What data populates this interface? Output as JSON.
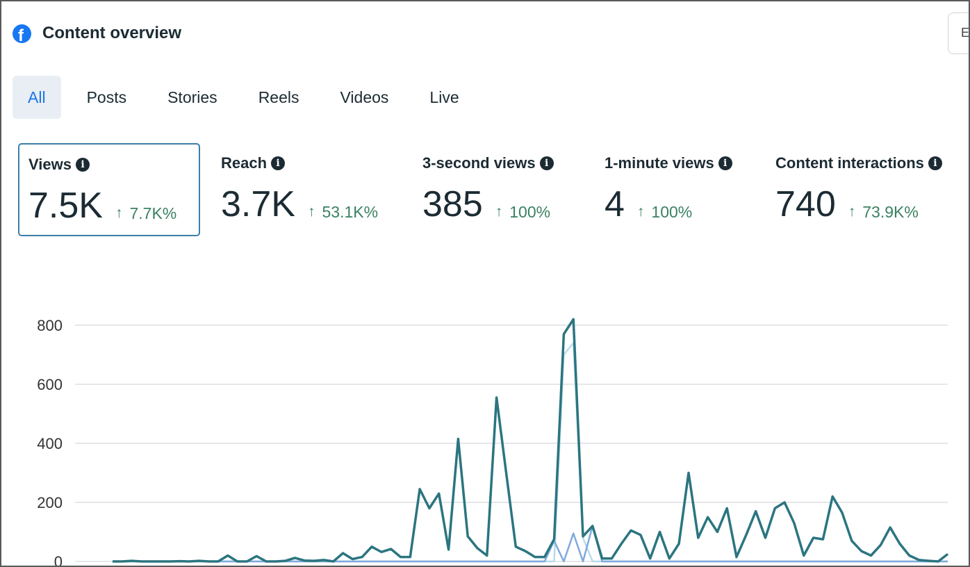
{
  "header": {
    "title": "Content overview",
    "logo_icon": "facebook-icon",
    "corner_button_label": "E"
  },
  "tabs": [
    {
      "label": "All",
      "active": true
    },
    {
      "label": "Posts",
      "active": false
    },
    {
      "label": "Stories",
      "active": false
    },
    {
      "label": "Reels",
      "active": false
    },
    {
      "label": "Videos",
      "active": false
    },
    {
      "label": "Live",
      "active": false
    }
  ],
  "metrics": [
    {
      "label": "Views",
      "value": "7.5K",
      "change": "7.7K%",
      "selected": true
    },
    {
      "label": "Reach",
      "value": "3.7K",
      "change": "53.1K%",
      "selected": false
    },
    {
      "label": "3-second views",
      "value": "385",
      "change": "100%",
      "selected": false
    },
    {
      "label": "1-minute views",
      "value": "4",
      "change": "100%",
      "selected": false
    },
    {
      "label": "Content interactions",
      "value": "740",
      "change": "73.9K%",
      "selected": false
    }
  ],
  "colors": {
    "accent": "#1b74e4",
    "positive": "#3b8162",
    "series_main": "#2b7580",
    "series_secondary": "#7fa9dc",
    "series_tertiary": "#b9dcea"
  },
  "chart_data": {
    "type": "line",
    "ylim": [
      0,
      800
    ],
    "yticks": [
      0,
      200,
      400,
      600,
      800
    ],
    "grid": true,
    "series": [
      {
        "color": "#2b7580",
        "values": [
          0,
          0,
          2,
          0,
          0,
          0,
          0,
          1,
          0,
          2,
          0,
          0,
          20,
          0,
          0,
          18,
          0,
          0,
          2,
          12,
          3,
          2,
          5,
          0,
          28,
          8,
          15,
          50,
          32,
          42,
          15,
          15,
          245,
          180,
          230,
          40,
          415,
          85,
          45,
          20,
          555,
          300,
          50,
          35,
          15,
          15,
          75,
          770,
          820,
          85,
          120,
          10,
          10,
          60,
          105,
          90,
          10,
          100,
          10,
          60,
          300,
          80,
          150,
          100,
          180,
          15,
          90,
          170,
          80,
          180,
          200,
          130,
          20,
          80,
          75,
          220,
          165,
          70,
          35,
          20,
          55,
          115,
          60,
          20,
          5,
          2,
          0,
          25
        ]
      },
      {
        "color": "#b9dcea",
        "values": [
          0,
          0,
          0,
          0,
          0,
          0,
          0,
          0,
          0,
          0,
          0,
          0,
          0,
          0,
          0,
          0,
          0,
          0,
          0,
          0,
          0,
          0,
          0,
          0,
          0,
          0,
          0,
          0,
          0,
          0,
          0,
          0,
          0,
          0,
          0,
          0,
          0,
          0,
          0,
          0,
          0,
          0,
          0,
          0,
          0,
          0,
          0,
          700,
          740,
          80,
          0,
          0,
          0,
          0,
          0,
          0,
          0,
          0,
          0,
          0,
          0,
          0,
          0,
          0,
          0,
          0,
          0,
          0,
          0,
          0,
          0,
          0,
          0,
          0,
          0,
          0,
          0,
          0,
          0,
          0,
          0,
          0,
          0,
          0,
          0,
          0,
          0,
          0
        ]
      },
      {
        "color": "#7fa9dc",
        "values": [
          0,
          0,
          0,
          0,
          0,
          0,
          0,
          0,
          0,
          0,
          0,
          0,
          0,
          0,
          0,
          0,
          0,
          0,
          0,
          0,
          0,
          0,
          0,
          0,
          0,
          0,
          0,
          0,
          0,
          0,
          0,
          0,
          0,
          0,
          0,
          0,
          0,
          0,
          0,
          0,
          0,
          0,
          0,
          0,
          0,
          0,
          70,
          0,
          95,
          0,
          120,
          0,
          0,
          0,
          0,
          0,
          0,
          0,
          0,
          0,
          0,
          0,
          0,
          0,
          0,
          0,
          0,
          0,
          0,
          0,
          0,
          0,
          0,
          0,
          0,
          0,
          0,
          0,
          0,
          0,
          0,
          0,
          0,
          0,
          0,
          0,
          0,
          0
        ]
      }
    ]
  }
}
